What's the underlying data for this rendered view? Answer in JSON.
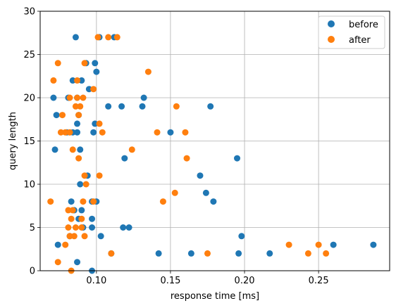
{
  "chart_data": {
    "type": "scatter",
    "xlabel": "response time [ms]",
    "ylabel": "query length",
    "xlim": [
      0.062,
      0.298
    ],
    "ylim": [
      0,
      30
    ],
    "xticks": [
      0.1,
      0.15,
      0.2,
      0.25
    ],
    "xtick_labels": [
      "0.10",
      "0.15",
      "0.20",
      "0.25"
    ],
    "yticks": [
      0,
      5,
      10,
      15,
      20,
      25,
      30
    ],
    "ytick_labels": [
      "0",
      "5",
      "10",
      "15",
      "20",
      "25",
      "30"
    ],
    "grid": true,
    "legend_position": "top-right",
    "series": [
      {
        "name": "before",
        "color": "#1f77b4",
        "points": [
          [
            0.097,
            0
          ],
          [
            0.087,
            1
          ],
          [
            0.11,
            2
          ],
          [
            0.142,
            2
          ],
          [
            0.164,
            2
          ],
          [
            0.196,
            2
          ],
          [
            0.217,
            2
          ],
          [
            0.26,
            3
          ],
          [
            0.287,
            3
          ],
          [
            0.074,
            3
          ],
          [
            0.198,
            4
          ],
          [
            0.103,
            4
          ],
          [
            0.082,
            4
          ],
          [
            0.118,
            5
          ],
          [
            0.122,
            5
          ],
          [
            0.097,
            5
          ],
          [
            0.091,
            5
          ],
          [
            0.088,
            6
          ],
          [
            0.097,
            6
          ],
          [
            0.085,
            7
          ],
          [
            0.09,
            7
          ],
          [
            0.083,
            8
          ],
          [
            0.097,
            8
          ],
          [
            0.1,
            8
          ],
          [
            0.179,
            8
          ],
          [
            0.174,
            9
          ],
          [
            0.089,
            10
          ],
          [
            0.17,
            11
          ],
          [
            0.094,
            11
          ],
          [
            0.119,
            13
          ],
          [
            0.195,
            13
          ],
          [
            0.072,
            14
          ],
          [
            0.089,
            14
          ],
          [
            0.084,
            16
          ],
          [
            0.087,
            16
          ],
          [
            0.098,
            16
          ],
          [
            0.15,
            16
          ],
          [
            0.08,
            16
          ],
          [
            0.099,
            17
          ],
          [
            0.087,
            17
          ],
          [
            0.073,
            18
          ],
          [
            0.088,
            18
          ],
          [
            0.108,
            19
          ],
          [
            0.117,
            19
          ],
          [
            0.131,
            19
          ],
          [
            0.177,
            19
          ],
          [
            0.071,
            20
          ],
          [
            0.081,
            20
          ],
          [
            0.087,
            20
          ],
          [
            0.132,
            20
          ],
          [
            0.095,
            21
          ],
          [
            0.084,
            22
          ],
          [
            0.09,
            22
          ],
          [
            0.1,
            23
          ],
          [
            0.093,
            24
          ],
          [
            0.099,
            24
          ],
          [
            0.086,
            27
          ],
          [
            0.102,
            27
          ],
          [
            0.112,
            27
          ]
        ]
      },
      {
        "name": "after",
        "color": "#ff7f0e",
        "points": [
          [
            0.083,
            0
          ],
          [
            0.074,
            1
          ],
          [
            0.11,
            2
          ],
          [
            0.175,
            2
          ],
          [
            0.243,
            2
          ],
          [
            0.255,
            2
          ],
          [
            0.23,
            3
          ],
          [
            0.25,
            3
          ],
          [
            0.079,
            3
          ],
          [
            0.082,
            4
          ],
          [
            0.085,
            4
          ],
          [
            0.092,
            4
          ],
          [
            0.081,
            5
          ],
          [
            0.086,
            5
          ],
          [
            0.09,
            5
          ],
          [
            0.083,
            6
          ],
          [
            0.09,
            6
          ],
          [
            0.081,
            7
          ],
          [
            0.084,
            7
          ],
          [
            0.069,
            8
          ],
          [
            0.091,
            8
          ],
          [
            0.098,
            8
          ],
          [
            0.145,
            8
          ],
          [
            0.153,
            9
          ],
          [
            0.093,
            10
          ],
          [
            0.092,
            11
          ],
          [
            0.102,
            11
          ],
          [
            0.088,
            13
          ],
          [
            0.161,
            13
          ],
          [
            0.084,
            14
          ],
          [
            0.124,
            14
          ],
          [
            0.076,
            16
          ],
          [
            0.079,
            16
          ],
          [
            0.082,
            16
          ],
          [
            0.104,
            16
          ],
          [
            0.141,
            16
          ],
          [
            0.16,
            16
          ],
          [
            0.102,
            17
          ],
          [
            0.077,
            18
          ],
          [
            0.088,
            18
          ],
          [
            0.086,
            19
          ],
          [
            0.089,
            19
          ],
          [
            0.154,
            19
          ],
          [
            0.082,
            20
          ],
          [
            0.087,
            20
          ],
          [
            0.091,
            20
          ],
          [
            0.098,
            21
          ],
          [
            0.071,
            22
          ],
          [
            0.087,
            22
          ],
          [
            0.135,
            23
          ],
          [
            0.074,
            24
          ],
          [
            0.092,
            24
          ],
          [
            0.101,
            27
          ],
          [
            0.108,
            27
          ],
          [
            0.114,
            27
          ]
        ]
      }
    ]
  }
}
